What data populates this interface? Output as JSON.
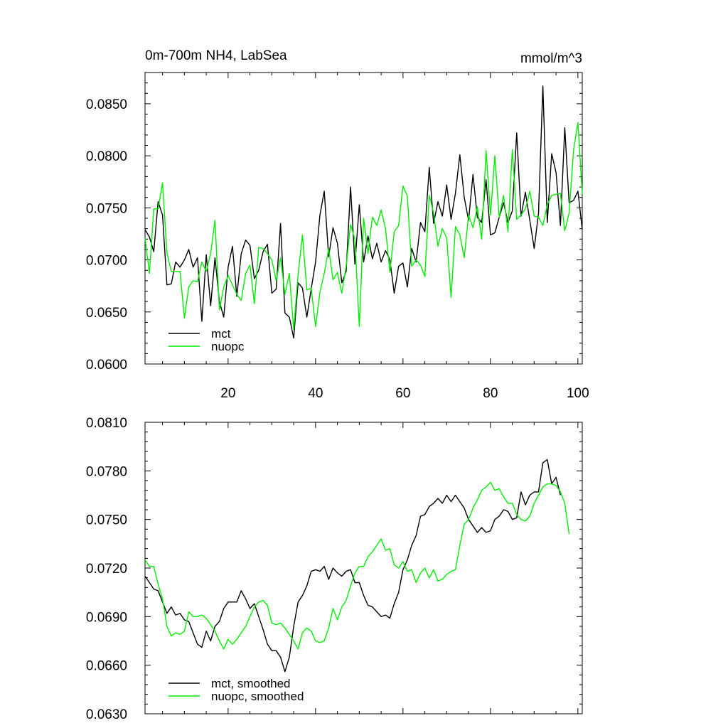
{
  "chart_data": [
    {
      "type": "line",
      "title_left": "0m-700m NH4, LabSea",
      "title_right": "mmol/m^3",
      "xlim": [
        1,
        101
      ],
      "ylim": [
        0.06,
        0.088
      ],
      "x_ticks": [
        20,
        40,
        60,
        80,
        100
      ],
      "y_ticks": [
        0.06,
        0.065,
        0.07,
        0.075,
        0.08,
        0.085
      ],
      "y_tick_labels": [
        "0.0600",
        "0.0650",
        "0.0700",
        "0.0750",
        "0.0800",
        "0.0850"
      ],
      "legend": "bottom-left",
      "series": [
        {
          "name": "mct",
          "color": "#000000",
          "values": [
            0.0729,
            0.0722,
            0.0708,
            0.0756,
            0.0743,
            0.0676,
            0.0677,
            0.0698,
            0.0693,
            0.07,
            0.071,
            0.0693,
            0.0702,
            0.0641,
            0.0705,
            0.0656,
            0.0702,
            0.066,
            0.0645,
            0.0693,
            0.0713,
            0.0665,
            0.0706,
            0.0719,
            0.0714,
            0.0682,
            0.069,
            0.0708,
            0.0715,
            0.0668,
            0.0672,
            0.0735,
            0.0649,
            0.0645,
            0.0625,
            0.0678,
            0.0673,
            0.0645,
            0.0672,
            0.0698,
            0.0743,
            0.0766,
            0.0703,
            0.0731,
            0.0716,
            0.0678,
            0.0689,
            0.077,
            0.0696,
            0.0753,
            0.0698,
            0.0723,
            0.0701,
            0.0716,
            0.0698,
            0.0709,
            0.07,
            0.0668,
            0.0694,
            0.0697,
            0.0674,
            0.0711,
            0.0698,
            0.0736,
            0.0727,
            0.0789,
            0.0735,
            0.0756,
            0.0742,
            0.0772,
            0.0739,
            0.0764,
            0.0801,
            0.076,
            0.0738,
            0.0782,
            0.0741,
            0.0736,
            0.0777,
            0.0724,
            0.0726,
            0.0741,
            0.0755,
            0.0736,
            0.0747,
            0.0822,
            0.0742,
            0.0765,
            0.0738,
            0.0711,
            0.0745,
            0.0867,
            0.0736,
            0.0802,
            0.0784,
            0.0733,
            0.0827,
            0.0755,
            0.0757,
            0.0766,
            0.0729
          ]
        },
        {
          "name": "nuopc",
          "color": "#00ee00",
          "values": [
            0.0721,
            0.0687,
            0.0749,
            0.0749,
            0.0774,
            0.0707,
            0.0689,
            0.0689,
            0.0689,
            0.0644,
            0.0674,
            0.068,
            0.0679,
            0.0698,
            0.0689,
            0.0706,
            0.0738,
            0.0652,
            0.0674,
            0.0685,
            0.0676,
            0.0667,
            0.0661,
            0.0687,
            0.0695,
            0.0658,
            0.0712,
            0.0711,
            0.0706,
            0.07,
            0.068,
            0.0702,
            0.0667,
            0.0687,
            0.0633,
            0.0686,
            0.0724,
            0.0671,
            0.0673,
            0.0636,
            0.0669,
            0.0687,
            0.0711,
            0.0681,
            0.0688,
            0.0668,
            0.0694,
            0.0734,
            0.072,
            0.0636,
            0.074,
            0.0706,
            0.0741,
            0.0733,
            0.0748,
            0.073,
            0.0688,
            0.0727,
            0.0733,
            0.0771,
            0.0761,
            0.0694,
            0.07,
            0.0695,
            0.0684,
            0.0762,
            0.0745,
            0.0713,
            0.073,
            0.0721,
            0.0664,
            0.0732,
            0.0724,
            0.0702,
            0.0743,
            0.0731,
            0.0751,
            0.072,
            0.0805,
            0.0743,
            0.08,
            0.0741,
            0.0762,
            0.0727,
            0.0806,
            0.0739,
            0.0743,
            0.0749,
            0.0766,
            0.0742,
            0.0741,
            0.0733,
            0.0753,
            0.0762,
            0.0763,
            0.0764,
            0.0728,
            0.0745,
            0.0805,
            0.0832,
            0.0763
          ]
        }
      ]
    },
    {
      "type": "line",
      "xlim": [
        1,
        101
      ],
      "ylim": [
        0.063,
        0.081
      ],
      "x_ticks": [
        20,
        40,
        60,
        80,
        100
      ],
      "y_ticks": [
        0.063,
        0.066,
        0.069,
        0.072,
        0.075,
        0.078,
        0.081
      ],
      "y_tick_labels": [
        "0.0630",
        "0.0660",
        "0.0690",
        "0.0720",
        "0.0750",
        "0.0780",
        "0.0810"
      ],
      "legend": "bottom-left",
      "series": [
        {
          "name": "mct, smoothed",
          "color": "#000000",
          "values": [
            0.0715,
            0.0711,
            0.0707,
            0.0706,
            0.0699,
            0.0692,
            0.0696,
            0.0691,
            0.0692,
            0.0688,
            0.0687,
            0.068,
            0.0673,
            0.0671,
            0.0681,
            0.0675,
            0.0684,
            0.0687,
            0.0695,
            0.0699,
            0.0699,
            0.0699,
            0.0706,
            0.0701,
            0.0695,
            0.0698,
            0.069,
            0.0682,
            0.0673,
            0.0669,
            0.0669,
            0.0665,
            0.0656,
            0.0665,
            0.0684,
            0.0699,
            0.0703,
            0.0709,
            0.0718,
            0.0719,
            0.0718,
            0.0721,
            0.0713,
            0.072,
            0.0717,
            0.0715,
            0.0718,
            0.0719,
            0.0711,
            0.0711,
            0.0703,
            0.0697,
            0.0696,
            0.0693,
            0.069,
            0.0691,
            0.0689,
            0.0698,
            0.0705,
            0.0719,
            0.0725,
            0.0734,
            0.074,
            0.0752,
            0.0753,
            0.0758,
            0.076,
            0.0763,
            0.076,
            0.0765,
            0.0761,
            0.0765,
            0.0761,
            0.0757,
            0.075,
            0.0746,
            0.0742,
            0.0745,
            0.0742,
            0.0743,
            0.075,
            0.0752,
            0.0756,
            0.0755,
            0.075,
            0.0751,
            0.0767,
            0.0759,
            0.0765,
            0.0767,
            0.0767,
            0.0785,
            0.0787,
            0.0772,
            0.0776,
            0.0765
          ]
        },
        {
          "name": "nuopc, smoothed",
          "color": "#00ee00",
          "values": [
            0.0725,
            0.0721,
            0.0721,
            0.071,
            0.0701,
            0.0684,
            0.0678,
            0.068,
            0.0679,
            0.0681,
            0.0693,
            0.069,
            0.069,
            0.0691,
            0.0689,
            0.0685,
            0.0681,
            0.0675,
            0.067,
            0.0676,
            0.0673,
            0.0676,
            0.068,
            0.0684,
            0.069,
            0.0696,
            0.0699,
            0.07,
            0.0697,
            0.0686,
            0.0685,
            0.0686,
            0.0683,
            0.0679,
            0.0675,
            0.067,
            0.068,
            0.0683,
            0.0681,
            0.0675,
            0.0674,
            0.0675,
            0.0683,
            0.0695,
            0.0688,
            0.0696,
            0.07,
            0.0709,
            0.0717,
            0.0721,
            0.0721,
            0.0727,
            0.073,
            0.0734,
            0.0738,
            0.0731,
            0.0732,
            0.0722,
            0.072,
            0.0724,
            0.0718,
            0.0719,
            0.0711,
            0.0717,
            0.072,
            0.0714,
            0.0719,
            0.0712,
            0.0713,
            0.0716,
            0.0718,
            0.0719,
            0.0734,
            0.0747,
            0.075,
            0.0757,
            0.0762,
            0.0768,
            0.077,
            0.0773,
            0.0768,
            0.0769,
            0.0764,
            0.076,
            0.076,
            0.0753,
            0.075,
            0.0749,
            0.0752,
            0.076,
            0.0765,
            0.077,
            0.0772,
            0.0772,
            0.0771,
            0.0767,
            0.076,
            0.0741
          ]
        }
      ]
    }
  ]
}
